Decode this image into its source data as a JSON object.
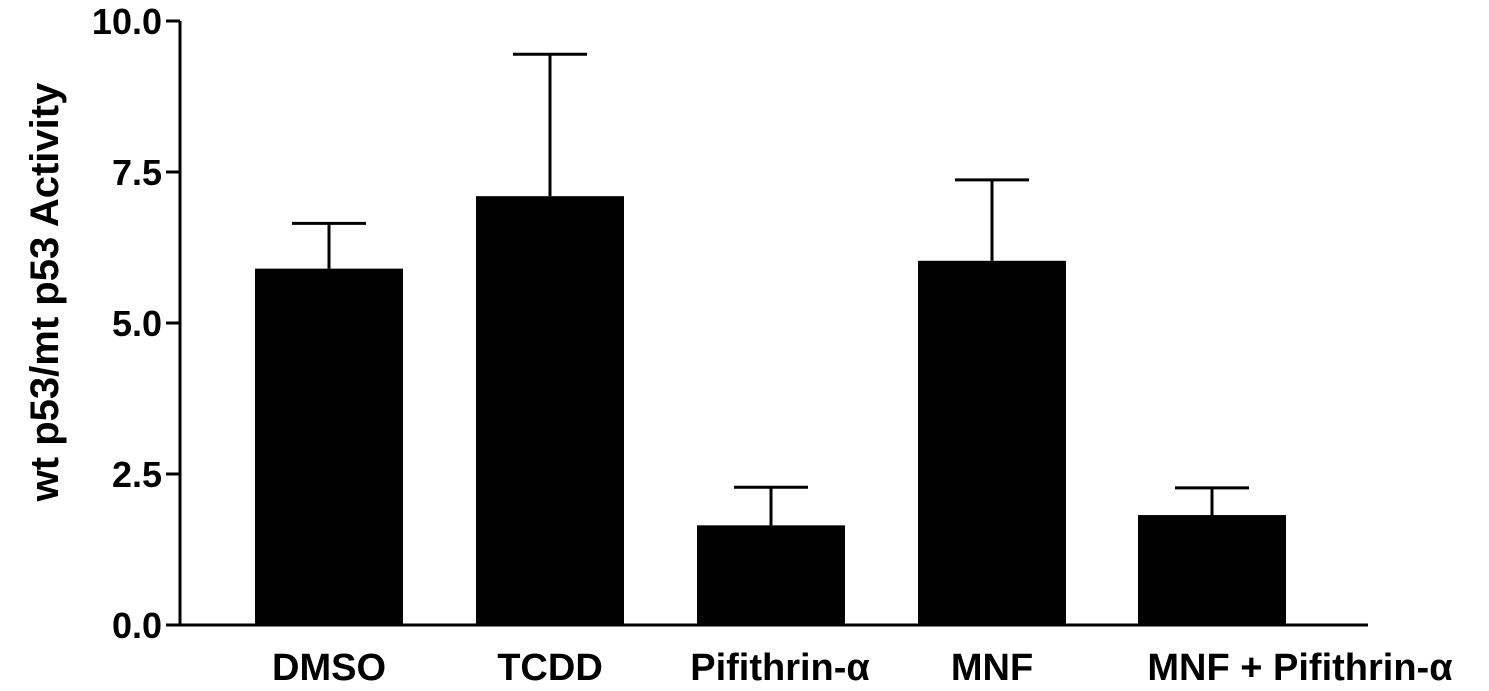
{
  "chart_data": {
    "type": "bar",
    "title": "",
    "xlabel": "",
    "ylabel": "wt p53/mt p53 Activity",
    "ylim": [
      0,
      10
    ],
    "yticks": [
      "0.0",
      "2.5",
      "5.0",
      "7.5",
      "10.0"
    ],
    "categories": [
      "DMSO",
      "TCDD",
      "Pifithrin-α",
      "MNF",
      "MNF + Pifithrin-α"
    ],
    "values": [
      5.9,
      7.1,
      1.65,
      6.03,
      1.82
    ],
    "errors": [
      0.75,
      2.35,
      0.63,
      1.34,
      0.45
    ],
    "grid": false,
    "legend": "none",
    "bar_color": "#000000"
  }
}
